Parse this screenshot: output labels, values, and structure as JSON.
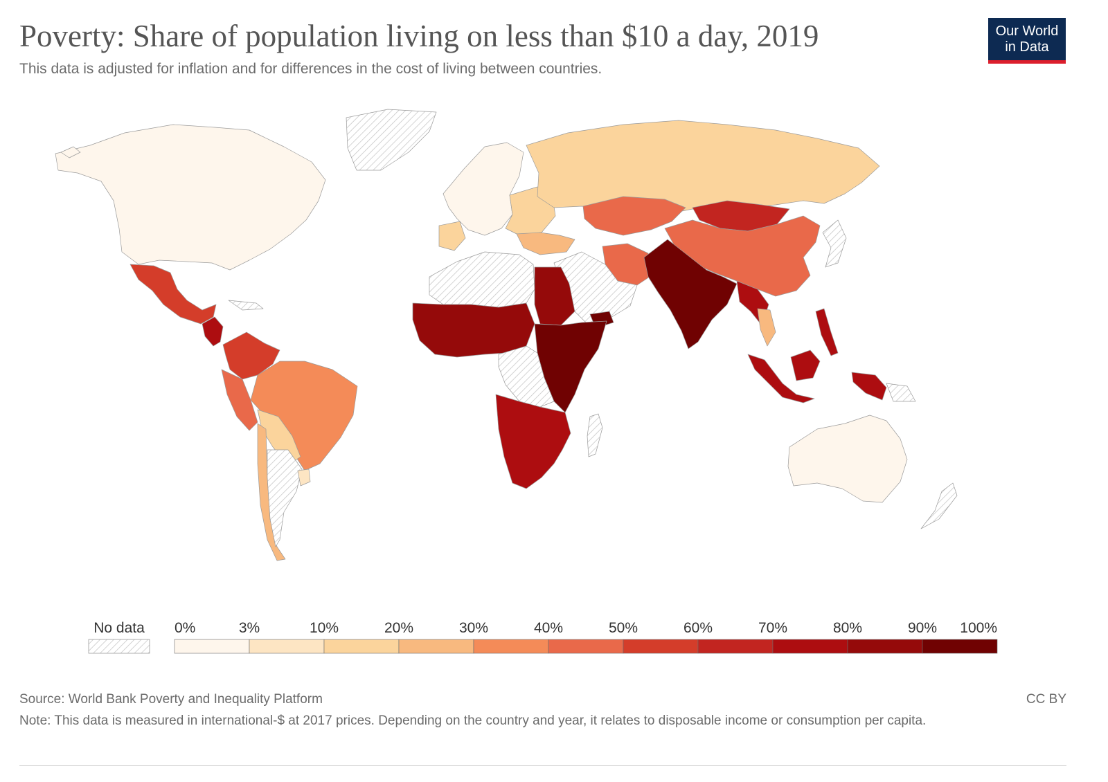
{
  "title": "Poverty: Share of population living on less than $10 a day, 2019",
  "subtitle": "This data is adjusted for inflation and for differences in the cost of living between countries.",
  "logo": {
    "line1": "Our World",
    "line2": "in Data"
  },
  "legend": {
    "no_data_label": "No data",
    "tick_labels": [
      "0%",
      "3%",
      "10%",
      "20%",
      "30%",
      "40%",
      "50%",
      "60%",
      "70%",
      "80%",
      "90%",
      "100%"
    ],
    "bins": [
      {
        "from": 0,
        "to": 3,
        "color": "#fef6ec"
      },
      {
        "from": 3,
        "to": 10,
        "color": "#fde5c3"
      },
      {
        "from": 10,
        "to": 20,
        "color": "#fbd49c"
      },
      {
        "from": 20,
        "to": 30,
        "color": "#f8b97f"
      },
      {
        "from": 30,
        "to": 40,
        "color": "#f48b58"
      },
      {
        "from": 40,
        "to": 50,
        "color": "#e9694a"
      },
      {
        "from": 50,
        "to": 60,
        "color": "#d43d2a"
      },
      {
        "from": 60,
        "to": 70,
        "color": "#c22520"
      },
      {
        "from": 70,
        "to": 80,
        "color": "#ad0d10"
      },
      {
        "from": 80,
        "to": 90,
        "color": "#950a0a"
      },
      {
        "from": 90,
        "to": 100,
        "color": "#700202"
      }
    ]
  },
  "map_colors": {
    "no_data_hatch": "#c8c8c8",
    "border": "#9a9a9a"
  },
  "regions": {
    "north_america": "#fef6ec",
    "greenland": "no-data",
    "mexico": "#d43d2a",
    "central_america": "#ad0d10",
    "colombia_venezuela": "#d43d2a",
    "peru": "#e9694a",
    "brazil": "#f48b58",
    "bolivia_paraguay": "#fbd49c",
    "argentina": "no-data",
    "chile": "#f8b97f",
    "uruguay": "#fde5c3",
    "western_europe": "#fef6ec",
    "eastern_europe": "#fbd49c",
    "balkans_turkey": "#f8b97f",
    "russia": "#fbd49c",
    "kazakhstan_central_asia": "#e9694a",
    "mongolia": "#c22520",
    "china": "#e9694a",
    "iran": "#e9694a",
    "middle_east": "no-data",
    "north_africa": "no-data",
    "egypt": "#950a0a",
    "west_sahel_africa": "#950a0a",
    "east_africa": "#700202",
    "central_africa": "no-data",
    "southern_africa": "#ad0d10",
    "south_africa": "#ad0d10",
    "madagascar": "no-data",
    "south_asia": "#700202",
    "myanmar": "#ad0d10",
    "thailand": "#f8b97f",
    "indonesia": "#ad0d10",
    "philippines": "#ad0d10",
    "japan_korea": "no-data",
    "australia": "#fef6ec",
    "new_zealand": "no-data"
  },
  "source": "Source: World Bank Poverty and Inequality Platform",
  "license": "CC BY",
  "note": "Note: This data is measured in international-$ at 2017 prices. Depending on the country and year, it relates to disposable income or consumption per capita."
}
